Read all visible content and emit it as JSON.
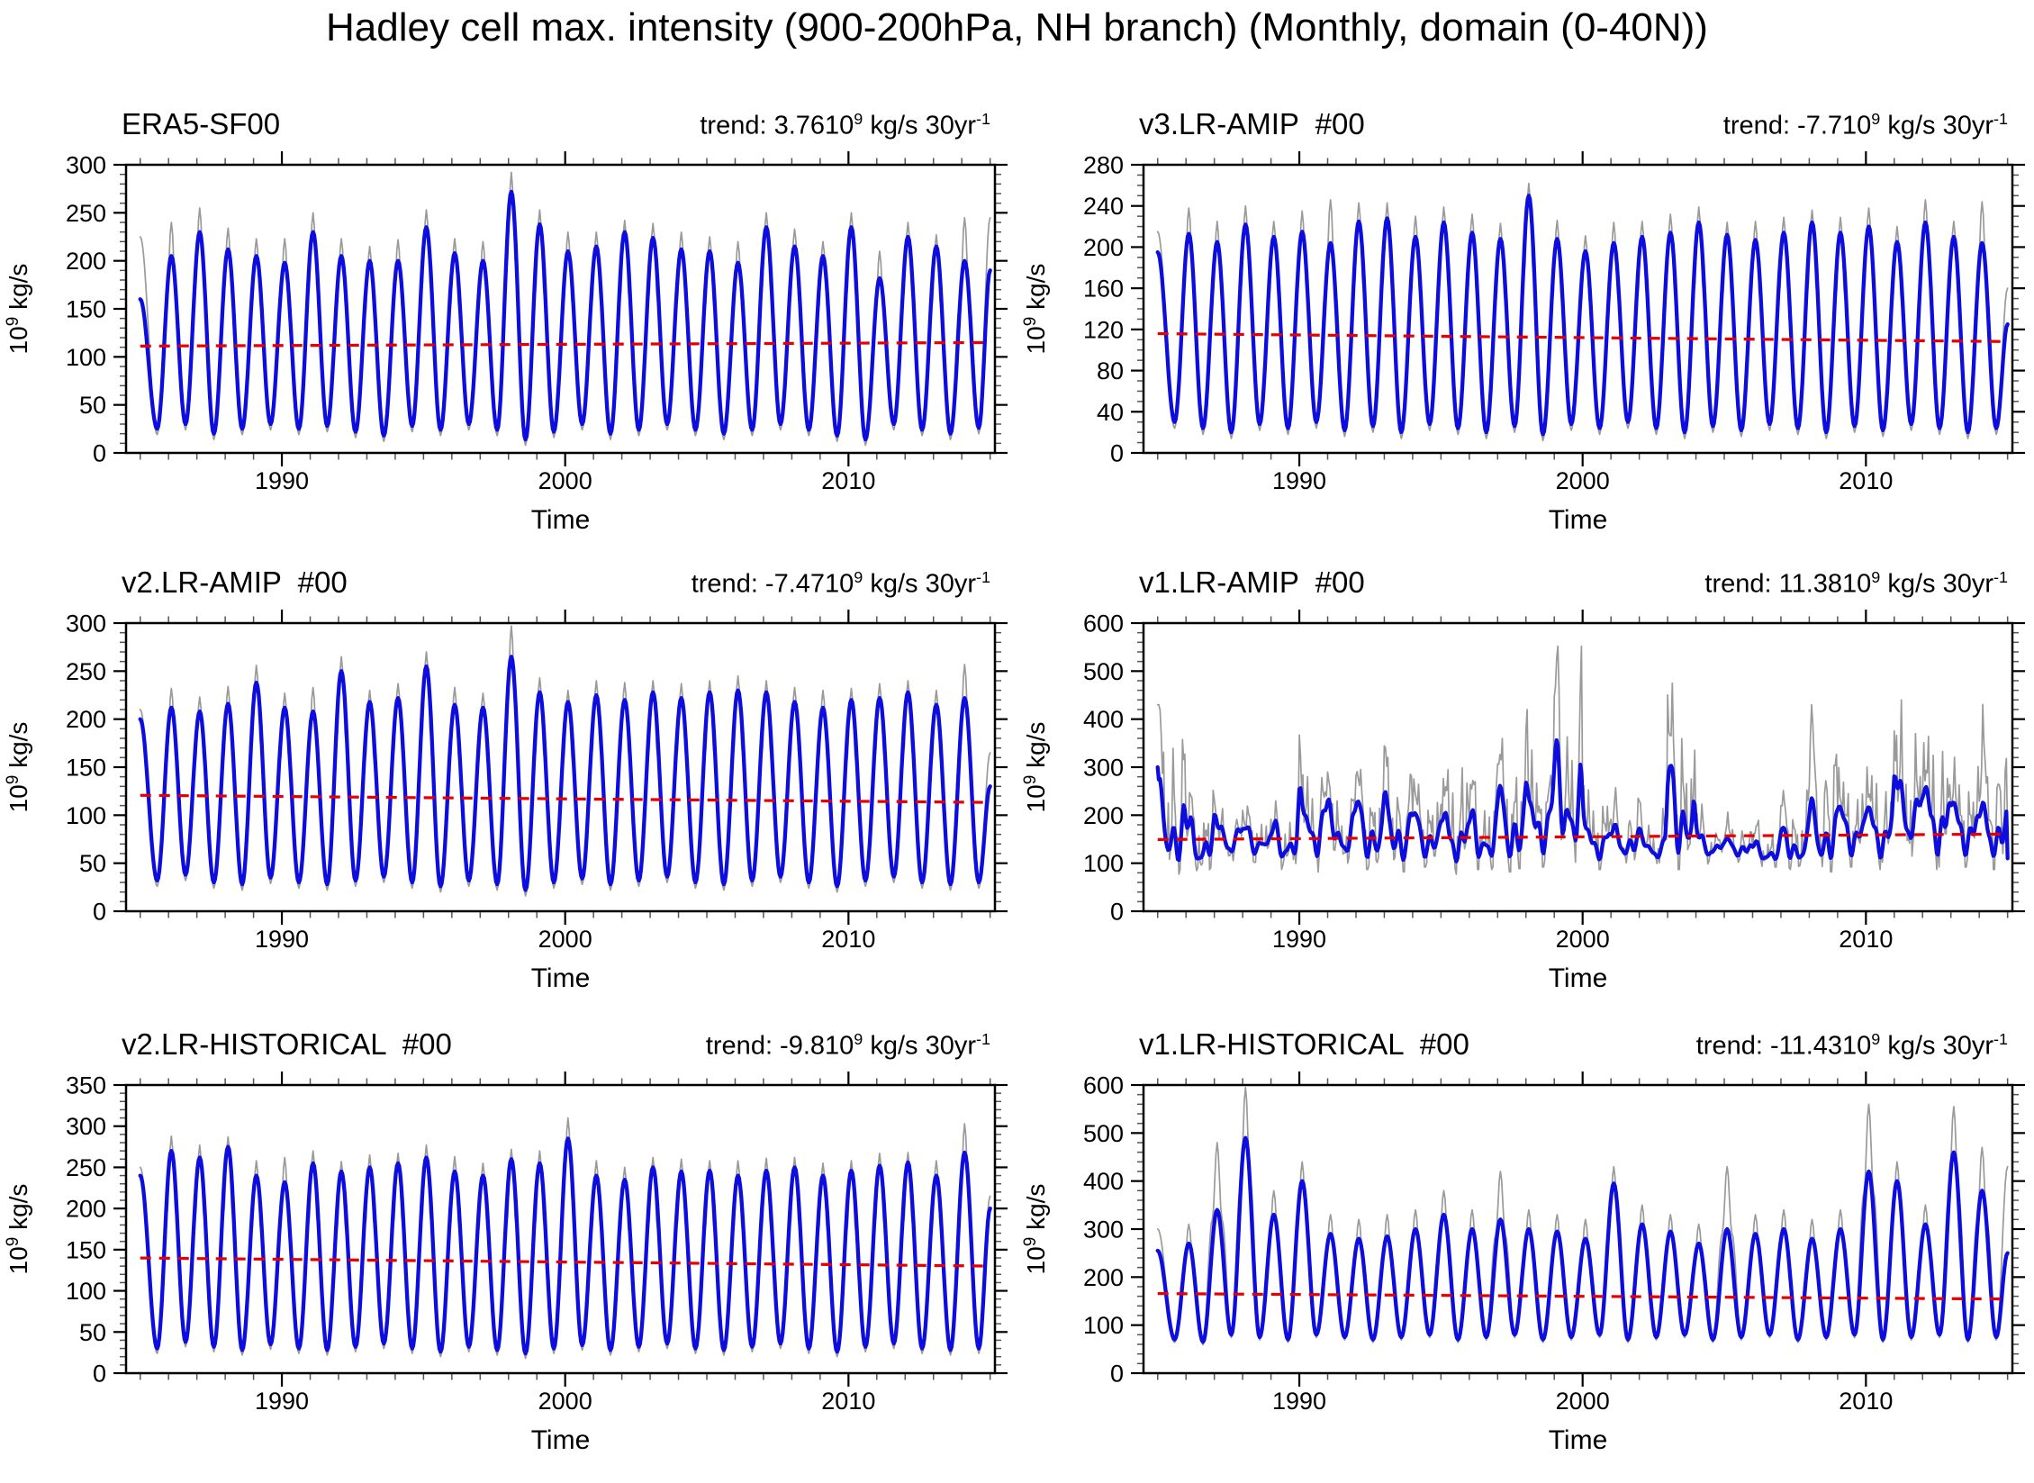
{
  "figure": {
    "title": "Hadley cell max. intensity (900-200hPa, NH branch) (Monthly, domain (0-40N))",
    "background": "#ffffff",
    "colors": {
      "raw_line": "#9a9a9a",
      "smoothed_line": "#0d0ddd",
      "trend_line": "#e80000",
      "axis": "#000000"
    }
  },
  "shared": {
    "xlabel": "Time",
    "ylabel_base": "10",
    "ylabel_exp": "9",
    "ylabel_unit": " kg/s",
    "xlim": [
      1984.5,
      2015.17
    ],
    "xticks": [
      1990,
      2000,
      2010
    ],
    "x_minor_step": 1,
    "x_data_start": 1985.0,
    "x_data_end": 2015.0,
    "sampling": "monthly"
  },
  "chart_data": [
    {
      "id": "era5-sf00",
      "type": "line",
      "style": "seasonal",
      "title": "ERA5-SF00",
      "trend_main1": "trend: 3.7610",
      "trend_exp1": "9",
      "trend_main2": " kg/s 30yr",
      "trend_exp2": "-1",
      "ylim": [
        0,
        300
      ],
      "yticks": [
        0,
        50,
        100,
        150,
        200,
        250,
        300
      ],
      "ytick_step": 50,
      "yminor_step": 10,
      "trend_line_y": {
        "start": 111.2,
        "end": 114.9
      },
      "series": {
        "start": 160,
        "end": 190,
        "start_gray": 225,
        "end_gray": 245,
        "peak_years_start": 1986,
        "peaks": [
          205,
          230,
          212,
          205,
          198,
          230,
          205,
          200,
          200,
          235,
          208,
          200,
          272,
          238,
          210,
          215,
          230,
          224,
          212,
          210,
          198,
          235,
          215,
          205,
          235,
          182,
          225,
          215,
          200
        ],
        "gray_peak_extra": [
          35,
          25,
          22,
          18,
          25,
          20,
          18,
          15,
          22,
          18,
          15,
          20,
          20,
          15,
          20,
          15,
          12,
          15,
          18,
          15,
          22,
          15,
          18,
          15,
          15,
          28,
          15,
          12,
          45
        ],
        "troughs": [
          25,
          30,
          20,
          25,
          30,
          25,
          28,
          22,
          18,
          28,
          24,
          30,
          24,
          14,
          22,
          30,
          20,
          24,
          30,
          24,
          20,
          24,
          30,
          24,
          18,
          14,
          30,
          24,
          20,
          26
        ]
      }
    },
    {
      "id": "v3lr-amip",
      "type": "line",
      "style": "seasonal",
      "title": "v3.LR-AMIP  #00",
      "trend_main1": "trend: -7.710",
      "trend_exp1": "9",
      "trend_main2": " kg/s 30yr",
      "trend_exp2": "-1",
      "ylim": [
        0,
        280
      ],
      "yticks": [
        0,
        40,
        80,
        120,
        160,
        200,
        240,
        280
      ],
      "ytick_step": 40,
      "yminor_step": 10,
      "trend_line_y": {
        "start": 115.9,
        "end": 108.2
      },
      "series": {
        "start": 195,
        "end": 125,
        "start_gray": 215,
        "end_gray": 160,
        "peak_years_start": 1986,
        "peaks": [
          213,
          205,
          222,
          210,
          215,
          204,
          225,
          228,
          210,
          224,
          214,
          208,
          250,
          208,
          196,
          204,
          210,
          214,
          224,
          212,
          207,
          214,
          224,
          214,
          220,
          205,
          224,
          210,
          204
        ],
        "gray_peak_extra": [
          25,
          20,
          18,
          15,
          20,
          42,
          18,
          15,
          20,
          15,
          18,
          15,
          12,
          18,
          15,
          20,
          15,
          18,
          15,
          12,
          18,
          15,
          12,
          15,
          18,
          15,
          22,
          15,
          40
        ],
        "troughs": [
          30,
          24,
          20,
          28,
          24,
          30,
          22,
          26,
          20,
          28,
          24,
          20,
          26,
          18,
          28,
          24,
          30,
          24,
          20,
          26,
          22,
          28,
          24,
          20,
          26,
          22,
          28,
          24,
          20,
          24
        ]
      }
    },
    {
      "id": "v2lr-amip",
      "type": "line",
      "style": "seasonal",
      "title": "v2.LR-AMIP  #00",
      "trend_main1": "trend: -7.4710",
      "trend_exp1": "9",
      "trend_main2": " kg/s 30yr",
      "trend_exp2": "-1",
      "ylim": [
        0,
        300
      ],
      "yticks": [
        0,
        50,
        100,
        150,
        200,
        250,
        300
      ],
      "ytick_step": 50,
      "yminor_step": 10,
      "trend_line_y": {
        "start": 120.7,
        "end": 113.3
      },
      "series": {
        "start": 200,
        "end": 130,
        "start_gray": 210,
        "end_gray": 165,
        "peak_years_start": 1986,
        "peaks": [
          212,
          208,
          216,
          238,
          212,
          208,
          250,
          218,
          222,
          255,
          215,
          212,
          265,
          228,
          218,
          225,
          220,
          228,
          222,
          228,
          230,
          228,
          218,
          212,
          220,
          222,
          228,
          215,
          222
        ],
        "gray_peak_extra": [
          20,
          15,
          18,
          18,
          15,
          25,
          15,
          12,
          15,
          15,
          18,
          15,
          32,
          15,
          12,
          15,
          18,
          12,
          15,
          12,
          15,
          12,
          15,
          18,
          12,
          15,
          12,
          15,
          35
        ],
        "troughs": [
          32,
          38,
          30,
          28,
          35,
          30,
          28,
          32,
          36,
          30,
          26,
          32,
          28,
          22,
          30,
          34,
          28,
          32,
          36,
          30,
          28,
          32,
          36,
          30,
          26,
          32,
          36,
          30,
          28,
          30
        ]
      }
    },
    {
      "id": "v1lr-amip",
      "type": "line",
      "style": "noisy",
      "title": "v1.LR-AMIP  #00",
      "trend_main1": "trend: 11.3810",
      "trend_exp1": "9",
      "trend_main2": " kg/s 30yr",
      "trend_exp2": "-1",
      "ylim": [
        0,
        600
      ],
      "yticks": [
        0,
        100,
        200,
        300,
        400,
        500,
        600
      ],
      "ytick_step": 100,
      "yminor_step": 20,
      "trend_line_y": {
        "start": 149.3,
        "end": 160.7
      },
      "series": {
        "seed": 7,
        "start": 300,
        "end": 110,
        "start_gray": 430,
        "end_gray": 150,
        "peak_years_start": 1985,
        "peaks": [
          300,
          235,
          245,
          205,
          215,
          320,
          255,
          265,
          275,
          240,
          270,
          230,
          305,
          330,
          390,
          230,
          205,
          185,
          370,
          185,
          168,
          155,
          195,
          260,
          275,
          280,
          390,
          345,
          290,
          280
        ],
        "gray_peaks": [
          430,
          280,
          260,
          240,
          230,
          390,
          290,
          330,
          360,
          300,
          360,
          290,
          380,
          420,
          552,
          290,
          260,
          230,
          475,
          230,
          210,
          190,
          260,
          430,
          320,
          340,
          465,
          420,
          350,
          450
        ],
        "troughs": [
          85,
          80,
          100,
          110,
          95,
          90,
          100,
          95,
          90,
          100,
          85,
          95,
          90,
          100,
          110,
          95,
          105,
          100,
          95,
          105,
          110,
          100,
          95,
          90,
          100,
          95,
          105,
          95,
          100,
          95
        ]
      }
    },
    {
      "id": "v2lr-historical",
      "type": "line",
      "style": "seasonal",
      "title": "v2.LR-HISTORICAL  #00",
      "trend_main1": "trend: -9.810",
      "trend_exp1": "9",
      "trend_main2": " kg/s 30yr",
      "trend_exp2": "-1",
      "ylim": [
        0,
        350
      ],
      "yticks": [
        0,
        50,
        100,
        150,
        200,
        250,
        300,
        350
      ],
      "ytick_step": 50,
      "yminor_step": 10,
      "trend_line_y": {
        "start": 139.9,
        "end": 130.1
      },
      "series": {
        "start": 240,
        "end": 200,
        "start_gray": 250,
        "end_gray": 215,
        "peak_years_start": 1986,
        "peaks": [
          270,
          262,
          275,
          240,
          232,
          255,
          245,
          250,
          255,
          262,
          245,
          240,
          260,
          255,
          285,
          240,
          235,
          250,
          245,
          246,
          240,
          246,
          250,
          240,
          246,
          252,
          256,
          240,
          268
        ],
        "gray_peak_extra": [
          18,
          15,
          12,
          18,
          30,
          15,
          12,
          15,
          12,
          15,
          18,
          15,
          12,
          15,
          25,
          18,
          15,
          12,
          15,
          12,
          18,
          15,
          12,
          15,
          12,
          15,
          12,
          18,
          35
        ],
        "troughs": [
          30,
          38,
          32,
          28,
          35,
          30,
          28,
          32,
          36,
          30,
          26,
          32,
          28,
          24,
          30,
          34,
          28,
          32,
          36,
          30,
          28,
          32,
          36,
          30,
          26,
          32,
          36,
          30,
          28,
          30
        ]
      }
    },
    {
      "id": "v1lr-historical",
      "type": "line",
      "style": "seasonal",
      "title": "v1.LR-HISTORICAL  #00",
      "trend_main1": "trend: -11.4310",
      "trend_exp1": "9",
      "trend_main2": " kg/s 30yr",
      "trend_exp2": "-1",
      "ylim": [
        0,
        600
      ],
      "yticks": [
        0,
        100,
        200,
        300,
        400,
        500,
        600
      ],
      "ytick_step": 100,
      "yminor_step": 20,
      "trend_line_y": {
        "start": 165.7,
        "end": 154.3
      },
      "series": {
        "start": 255,
        "end": 250,
        "start_gray": 300,
        "end_gray": 430,
        "peak_years_start": 1986,
        "peaks": [
          270,
          340,
          490,
          330,
          400,
          290,
          280,
          285,
          300,
          330,
          300,
          320,
          300,
          295,
          280,
          395,
          310,
          295,
          270,
          300,
          290,
          300,
          280,
          300,
          420,
          400,
          310,
          460,
          380
        ],
        "gray_peak_extra": [
          40,
          140,
          105,
          50,
          40,
          40,
          40,
          45,
          40,
          50,
          40,
          100,
          40,
          35,
          40,
          35,
          40,
          35,
          40,
          130,
          40,
          40,
          40,
          40,
          140,
          40,
          40,
          95,
          90
        ],
        "troughs": [
          70,
          65,
          80,
          75,
          70,
          80,
          75,
          70,
          75,
          80,
          70,
          75,
          80,
          70,
          75,
          80,
          70,
          75,
          80,
          70,
          75,
          80,
          70,
          75,
          80,
          70,
          75,
          80,
          70,
          75
        ]
      }
    }
  ]
}
